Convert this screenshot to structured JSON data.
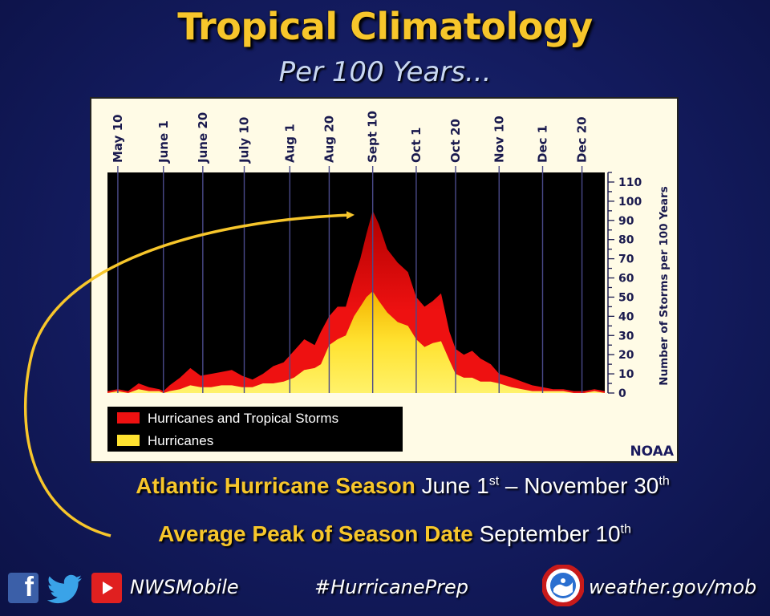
{
  "header": {
    "title": "Tropical Climatology",
    "subtitle": "Per 100 Years..."
  },
  "colors": {
    "title": "#f7c62b",
    "tropical_storms": "#ee1111",
    "tropical_storms_dark": "#b00000",
    "hurricanes": "#ffe230",
    "plot_bg": "#000000",
    "page_bg": "#141c60"
  },
  "chart_data": {
    "type": "area",
    "x_tick_labels": [
      "May 10",
      "June 1",
      "June 20",
      "July 10",
      "Aug 1",
      "Aug 20",
      "Sept 10",
      "Oct 1",
      "Oct 20",
      "Nov 10",
      "Dec 1",
      "Dec 20"
    ],
    "x_tick_days": [
      130,
      152,
      171,
      191,
      213,
      232,
      253,
      274,
      293,
      314,
      335,
      354
    ],
    "x_range_days": [
      125,
      365
    ],
    "ylabel": "Number of Storms per 100 Years",
    "ylim": [
      0,
      115
    ],
    "y_ticks": [
      0,
      10,
      20,
      30,
      40,
      50,
      60,
      70,
      80,
      90,
      100,
      110
    ],
    "series": [
      {
        "name": "Hurricanes and Tropical Storms",
        "x": [
          125,
          130,
          135,
          140,
          145,
          150,
          152,
          155,
          160,
          165,
          170,
          175,
          180,
          185,
          190,
          195,
          200,
          205,
          210,
          215,
          220,
          225,
          228,
          232,
          236,
          240,
          244,
          247,
          250,
          253,
          256,
          260,
          265,
          270,
          274,
          278,
          282,
          286,
          290,
          293,
          297,
          301,
          305,
          310,
          314,
          320,
          325,
          330,
          335,
          340,
          345,
          350,
          355,
          360,
          365
        ],
        "values": [
          1,
          2,
          1,
          5,
          3,
          2,
          1,
          4,
          8,
          13,
          9,
          10,
          11,
          12,
          9,
          7,
          10,
          14,
          16,
          22,
          28,
          25,
          32,
          40,
          45,
          45,
          60,
          70,
          83,
          95,
          88,
          75,
          68,
          63,
          50,
          45,
          48,
          52,
          32,
          23,
          20,
          22,
          18,
          15,
          10,
          8,
          6,
          4,
          3,
          2,
          2,
          1,
          1,
          2,
          1
        ]
      },
      {
        "name": "Hurricanes",
        "x": [
          125,
          130,
          135,
          140,
          145,
          150,
          152,
          155,
          160,
          165,
          170,
          175,
          180,
          185,
          190,
          195,
          200,
          205,
          210,
          215,
          220,
          225,
          228,
          232,
          236,
          240,
          244,
          247,
          250,
          253,
          256,
          260,
          265,
          270,
          274,
          278,
          282,
          286,
          290,
          293,
          297,
          301,
          305,
          310,
          314,
          320,
          325,
          330,
          335,
          340,
          345,
          350,
          355,
          360,
          365
        ],
        "values": [
          0,
          1,
          0,
          2,
          1,
          1,
          0,
          1,
          2,
          4,
          3,
          3,
          4,
          4,
          3,
          3,
          5,
          5,
          6,
          8,
          12,
          13,
          15,
          25,
          28,
          30,
          40,
          45,
          50,
          53,
          48,
          42,
          37,
          35,
          28,
          24,
          26,
          27,
          17,
          10,
          8,
          8,
          6,
          6,
          5,
          3,
          2,
          1,
          1,
          1,
          1,
          0,
          0,
          1,
          0
        ]
      }
    ],
    "legend_position": "bottom-left",
    "grid": true
  },
  "chart_source": "NOAA",
  "info": {
    "season_label": "Atlantic Hurricane Season",
    "season_start": "June 1",
    "season_start_sup": "st",
    "season_dash": " – ",
    "season_end": "November 30",
    "season_end_sup": "th",
    "peak_label": "Average Peak of Season Date",
    "peak_date": "September 10",
    "peak_date_sup": "th"
  },
  "footer": {
    "handle": "NWSMobile",
    "hashtag": "#HurricanePrep",
    "website": "weather.gov/mob",
    "icons": [
      "facebook-icon",
      "twitter-icon",
      "youtube-icon",
      "nws-logo-icon"
    ]
  }
}
